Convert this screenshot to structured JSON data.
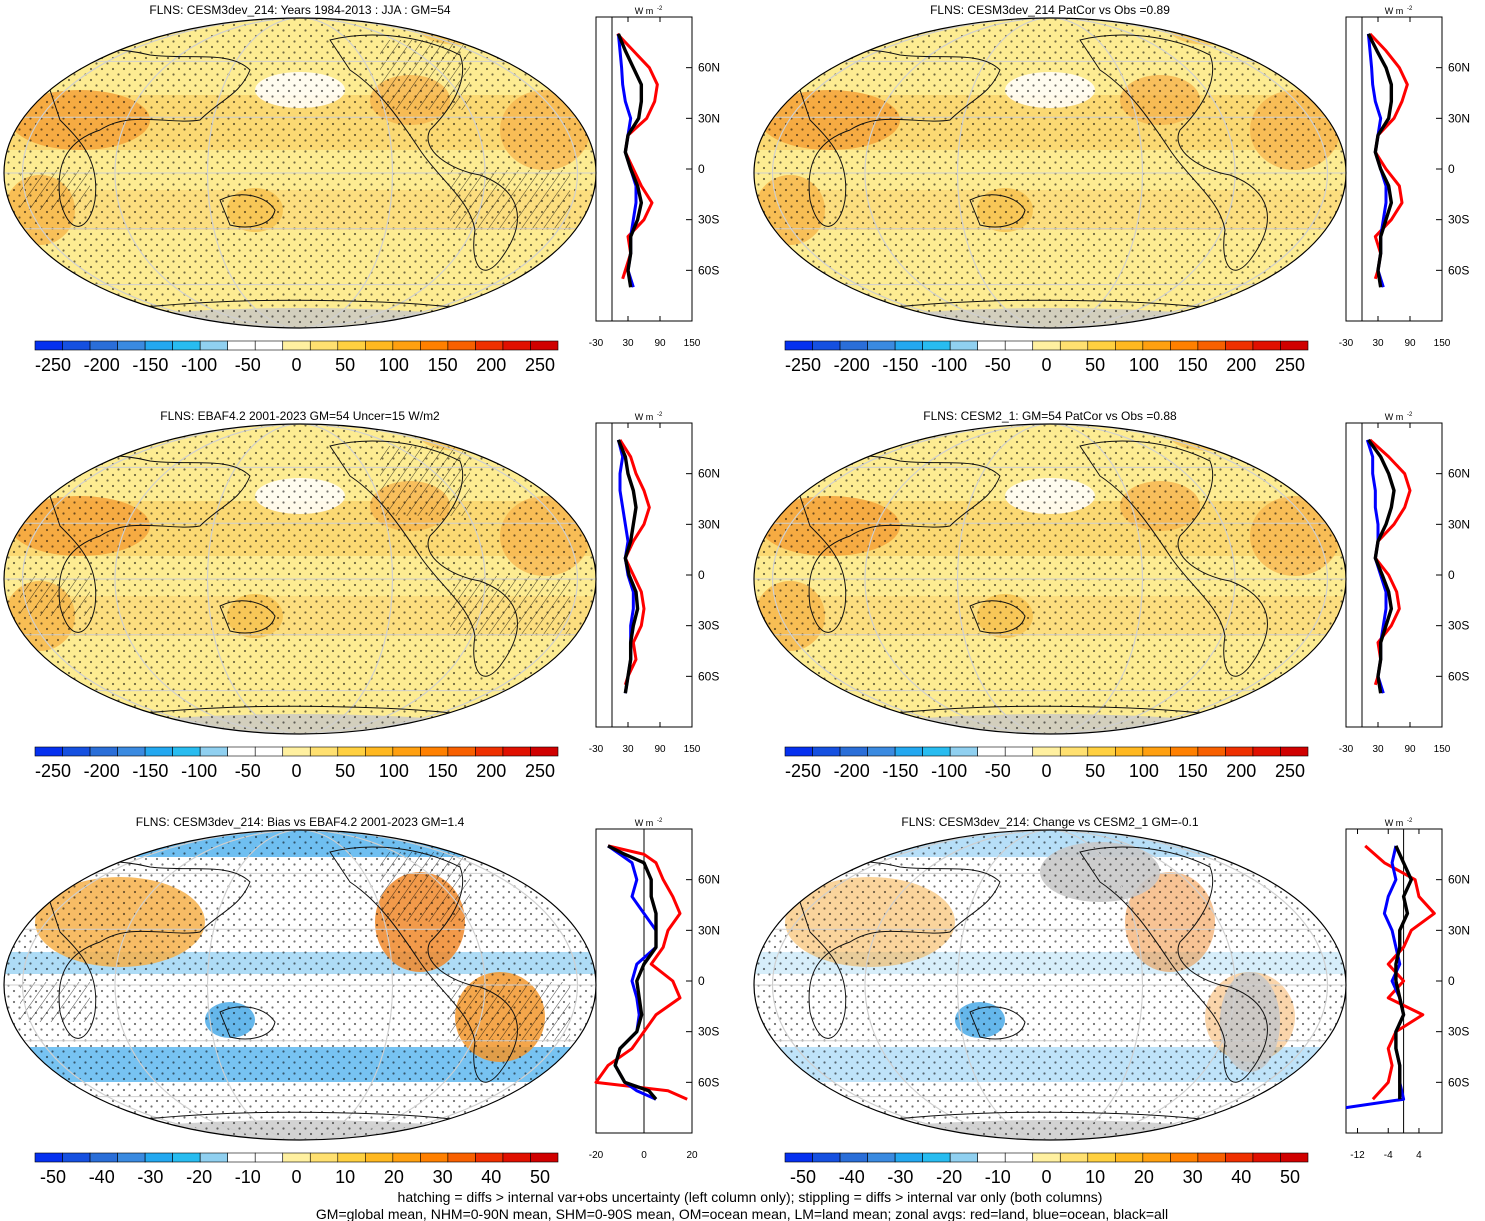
{
  "chart_data": [
    {
      "type": "map",
      "title": "FLNS: CESM3dev_214: Years 1984-2013 : JJA : GM=54",
      "colorbar": {
        "ticks": [
          "-250",
          "-200",
          "-150",
          "-100",
          "-50",
          "0",
          "50",
          "100",
          "150",
          "200",
          "250"
        ]
      },
      "zonal": {
        "units": "W m",
        "unit_exp": "-2",
        "x_ticks": [
          "-30",
          "30",
          "90",
          "150"
        ],
        "xlim": [
          -30,
          150
        ],
        "lat_labels": [
          "60N",
          "30N",
          "0",
          "30S",
          "60S"
        ],
        "series": [
          {
            "name": "land",
            "color": "#ff0000",
            "lat": [
              80,
              70,
              60,
              50,
              40,
              30,
              20,
              10,
              0,
              -10,
              -20,
              -30,
              -40,
              -50,
              -60,
              -65
            ],
            "values": [
              10,
              40,
              70,
              85,
              80,
              65,
              30,
              25,
              40,
              55,
              75,
              60,
              30,
              35,
              25,
              20
            ]
          },
          {
            "name": "ocean",
            "color": "#0000ff",
            "lat": [
              80,
              70,
              60,
              50,
              40,
              30,
              20,
              10,
              0,
              -10,
              -20,
              -30,
              -40,
              -50,
              -60,
              -70
            ],
            "values": [
              12,
              15,
              18,
              20,
              25,
              35,
              30,
              25,
              35,
              45,
              45,
              40,
              35,
              35,
              30,
              40
            ]
          },
          {
            "name": "all",
            "color": "#000000",
            "lat": [
              80,
              70,
              60,
              50,
              40,
              30,
              20,
              10,
              0,
              -10,
              -20,
              -30,
              -40,
              -50,
              -60,
              -70
            ],
            "values": [
              12,
              25,
              40,
              55,
              55,
              50,
              30,
              25,
              35,
              48,
              55,
              48,
              35,
              35,
              30,
              35
            ]
          }
        ]
      }
    },
    {
      "type": "map",
      "title": "FLNS: CESM3dev_214 PatCor vs Obs =0.89",
      "colorbar": {
        "ticks": [
          "-250",
          "-200",
          "-150",
          "-100",
          "-50",
          "0",
          "50",
          "100",
          "150",
          "200",
          "250"
        ]
      },
      "zonal": {
        "units": "W m",
        "unit_exp": "-2",
        "x_ticks": [
          "-30",
          "30",
          "90",
          "150"
        ],
        "xlim": [
          -30,
          150
        ],
        "lat_labels": [
          "60N",
          "30N",
          "0",
          "30S",
          "60S"
        ],
        "series": [
          {
            "name": "land",
            "color": "#ff0000",
            "lat": [
              80,
              70,
              60,
              50,
              40,
              30,
              20,
              10,
              0,
              -10,
              -20,
              -30,
              -40,
              -50,
              -60,
              -65
            ],
            "values": [
              15,
              45,
              70,
              85,
              75,
              60,
              30,
              25,
              45,
              70,
              75,
              55,
              25,
              35,
              30,
              25
            ]
          },
          {
            "name": "ocean",
            "color": "#0000ff",
            "lat": [
              80,
              70,
              60,
              50,
              40,
              30,
              20,
              10,
              0,
              -10,
              -20,
              -30,
              -40,
              -50,
              -60,
              -70
            ],
            "values": [
              12,
              15,
              18,
              20,
              25,
              35,
              30,
              25,
              35,
              45,
              45,
              40,
              35,
              35,
              30,
              40
            ]
          },
          {
            "name": "all",
            "color": "#000000",
            "lat": [
              80,
              70,
              60,
              50,
              40,
              30,
              20,
              10,
              0,
              -10,
              -20,
              -30,
              -40,
              -50,
              -60,
              -70
            ],
            "values": [
              12,
              28,
              45,
              55,
              55,
              50,
              30,
              25,
              35,
              50,
              55,
              45,
              35,
              35,
              30,
              35
            ]
          }
        ]
      }
    },
    {
      "type": "map",
      "title": "FLNS: EBAF4.2 2001-2023 GM=54 Uncer=15 W/m2",
      "colorbar": {
        "ticks": [
          "-250",
          "-200",
          "-150",
          "-100",
          "-50",
          "0",
          "50",
          "100",
          "150",
          "200",
          "250"
        ]
      },
      "zonal": {
        "units": "W m",
        "unit_exp": "-2",
        "x_ticks": [
          "-30",
          "30",
          "90",
          "150"
        ],
        "xlim": [
          -30,
          150
        ],
        "lat_labels": [
          "60N",
          "30N",
          "0",
          "30S",
          "60S"
        ],
        "series": [
          {
            "name": "land",
            "color": "#ff0000",
            "lat": [
              80,
              70,
              60,
              50,
              40,
              30,
              20,
              10,
              0,
              -10,
              -20,
              -30,
              -40,
              -50,
              -60,
              -65
            ],
            "values": [
              15,
              35,
              45,
              60,
              70,
              60,
              40,
              25,
              40,
              55,
              60,
              55,
              40,
              45,
              30,
              25
            ]
          },
          {
            "name": "ocean",
            "color": "#0000ff",
            "lat": [
              80,
              70,
              60,
              50,
              40,
              30,
              20,
              10,
              0,
              -10,
              -20,
              -30,
              -40,
              -50,
              -60,
              -70
            ],
            "values": [
              12,
              20,
              15,
              15,
              20,
              25,
              30,
              25,
              30,
              40,
              40,
              35,
              35,
              35,
              30,
              25
            ]
          },
          {
            "name": "all",
            "color": "#000000",
            "lat": [
              80,
              70,
              60,
              50,
              40,
              30,
              20,
              10,
              0,
              -10,
              -20,
              -30,
              -40,
              -50,
              -60,
              -70
            ],
            "values": [
              12,
              25,
              30,
              40,
              45,
              40,
              35,
              25,
              32,
              45,
              48,
              40,
              35,
              35,
              30,
              25
            ]
          }
        ]
      }
    },
    {
      "type": "map",
      "title": "FLNS: CESM2_1: GM=54 PatCor vs Obs =0.88",
      "colorbar": {
        "ticks": [
          "-250",
          "-200",
          "-150",
          "-100",
          "-50",
          "0",
          "50",
          "100",
          "150",
          "200",
          "250"
        ]
      },
      "zonal": {
        "units": "W m",
        "unit_exp": "-2",
        "x_ticks": [
          "-30",
          "30",
          "90",
          "150"
        ],
        "xlim": [
          -30,
          150
        ],
        "lat_labels": [
          "60N",
          "30N",
          "0",
          "30S",
          "60S"
        ],
        "series": [
          {
            "name": "land",
            "color": "#ff0000",
            "lat": [
              80,
              70,
              60,
              50,
              40,
              30,
              20,
              10,
              0,
              -10,
              -20,
              -30,
              -40,
              -50,
              -60,
              -65
            ],
            "values": [
              15,
              50,
              80,
              90,
              80,
              60,
              30,
              25,
              50,
              65,
              70,
              55,
              30,
              35,
              30,
              25
            ]
          },
          {
            "name": "ocean",
            "color": "#0000ff",
            "lat": [
              80,
              70,
              60,
              50,
              40,
              30,
              20,
              10,
              0,
              -10,
              -20,
              -30,
              -40,
              -50,
              -60,
              -70
            ],
            "values": [
              10,
              20,
              20,
              25,
              25,
              30,
              30,
              25,
              35,
              45,
              45,
              40,
              35,
              35,
              30,
              40
            ]
          },
          {
            "name": "all",
            "color": "#000000",
            "lat": [
              80,
              70,
              60,
              50,
              40,
              30,
              20,
              10,
              0,
              -10,
              -20,
              -30,
              -40,
              -50,
              -60,
              -70
            ],
            "values": [
              12,
              35,
              50,
              60,
              55,
              45,
              30,
              25,
              38,
              50,
              55,
              45,
              35,
              35,
              30,
              35
            ]
          }
        ]
      }
    },
    {
      "type": "map",
      "title": "FLNS: CESM3dev_214: Bias vs EBAF4.2 2001-2023 GM=1.4",
      "colorbar": {
        "ticks": [
          "-50",
          "-40",
          "-30",
          "-20",
          "-10",
          "0",
          "10",
          "20",
          "30",
          "40",
          "50"
        ]
      },
      "zonal": {
        "units": "W m",
        "unit_exp": "-2",
        "x_ticks": [
          "-20",
          "0",
          "20"
        ],
        "xlim": [
          -20,
          20
        ],
        "lat_labels": [
          "60N",
          "30N",
          "0",
          "30S",
          "60S"
        ],
        "series": [
          {
            "name": "land",
            "color": "#ff0000",
            "lat": [
              80,
              75,
              70,
              60,
              50,
              40,
              30,
              20,
              10,
              0,
              -10,
              -20,
              -30,
              -40,
              -50,
              -60,
              -65,
              -70
            ],
            "values": [
              -15,
              0,
              5,
              8,
              12,
              15,
              10,
              8,
              3,
              12,
              15,
              5,
              0,
              -5,
              -15,
              -20,
              10,
              18
            ]
          },
          {
            "name": "ocean",
            "color": "#0000ff",
            "lat": [
              80,
              75,
              70,
              60,
              50,
              40,
              30,
              20,
              10,
              0,
              -10,
              -20,
              -30,
              -40,
              -50,
              -60,
              -65,
              -70
            ],
            "values": [
              -15,
              -10,
              -5,
              -3,
              -5,
              0,
              5,
              5,
              -3,
              -5,
              -3,
              -2,
              -3,
              -10,
              -12,
              -8,
              -3,
              5
            ]
          },
          {
            "name": "all",
            "color": "#000000",
            "lat": [
              80,
              75,
              70,
              60,
              50,
              40,
              30,
              20,
              10,
              0,
              -10,
              -20,
              -30,
              -40,
              -50,
              -60,
              -65,
              -70
            ],
            "values": [
              -15,
              -8,
              0,
              3,
              3,
              5,
              5,
              5,
              0,
              -3,
              -2,
              -1,
              -3,
              -10,
              -12,
              -8,
              2,
              5
            ]
          }
        ]
      }
    },
    {
      "type": "map",
      "title": "FLNS: CESM3dev_214: Change vs CESM2_1 GM=-0.1",
      "colorbar": {
        "ticks": [
          "-50",
          "-40",
          "-30",
          "-20",
          "-10",
          "0",
          "10",
          "20",
          "30",
          "40",
          "50"
        ]
      },
      "zonal": {
        "units": "W m",
        "unit_exp": "-2",
        "x_ticks": [
          "-12",
          "-4",
          "4"
        ],
        "xlim": [
          -15,
          10
        ],
        "lat_labels": [
          "60N",
          "30N",
          "0",
          "30S",
          "60S"
        ],
        "series": [
          {
            "name": "land",
            "color": "#ff0000",
            "lat": [
              80,
              70,
              60,
              50,
              40,
              30,
              20,
              10,
              0,
              -10,
              -20,
              -30,
              -40,
              -50,
              -60,
              -70
            ],
            "values": [
              -10,
              -5,
              3,
              4,
              8,
              2,
              0,
              -4,
              0,
              -4,
              5,
              -2,
              -4,
              -3,
              -4,
              -8
            ]
          },
          {
            "name": "ocean",
            "color": "#0000ff",
            "lat": [
              80,
              70,
              60,
              50,
              40,
              30,
              20,
              10,
              0,
              -10,
              -20,
              -30,
              -40,
              -50,
              -60,
              -70,
              -75
            ],
            "values": [
              -2,
              -3,
              -2,
              -4,
              -5,
              -3,
              -2,
              -1,
              -3,
              -1,
              0,
              -2,
              -2,
              -1,
              -1,
              0,
              -15
            ]
          },
          {
            "name": "all",
            "color": "#000000",
            "lat": [
              80,
              70,
              60,
              50,
              40,
              30,
              20,
              10,
              0,
              -10,
              -20,
              -30,
              -40,
              -50,
              -60,
              -70
            ],
            "values": [
              -2,
              0,
              2,
              0,
              1,
              -1,
              -1,
              -2,
              -2,
              -1,
              0,
              -2,
              -2,
              -1,
              -1,
              -1
            ]
          }
        ]
      }
    }
  ],
  "footer": {
    "line1": "hatching = diffs > internal var+obs uncertainty (left column only); stippling = diffs > internal var only (both columns)",
    "line2": "GM=global mean, NHM=0-90N mean, SHM=0-90S mean, OM=ocean mean, LM=land mean; zonal avgs: red=land, blue=ocean, black=all"
  },
  "colors": {
    "abs_scale": [
      "#0530ef",
      "#1550e0",
      "#2a6ed8",
      "#3a8ae0",
      "#23a8f0",
      "#28bcf0",
      "#90d0f0",
      "#ffffff",
      "#ffffff",
      "#fff0a0",
      "#ffe070",
      "#ffd040",
      "#ffb820",
      "#ffa010",
      "#ff8000",
      "#f86000",
      "#ef3000",
      "#e01000",
      "#d00000"
    ],
    "land_gray": "#c8c8c8"
  }
}
